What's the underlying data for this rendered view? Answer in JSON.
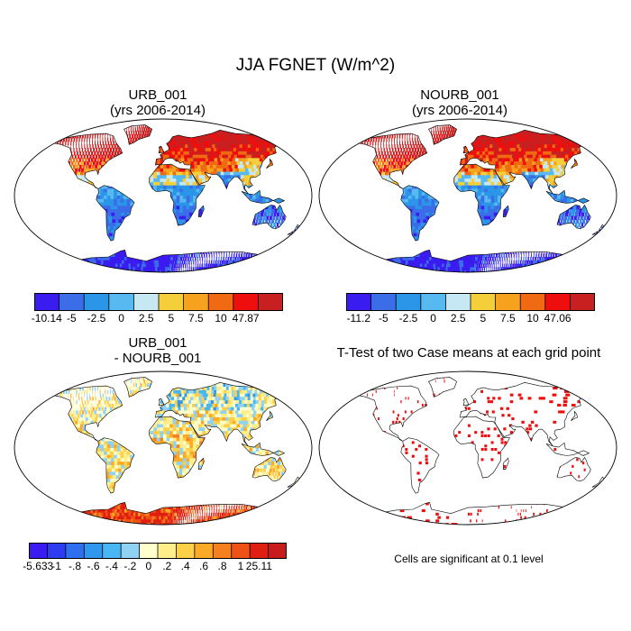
{
  "title": "JJA FGNET (W/m^2)",
  "panels": [
    {
      "id": "urb",
      "title_line1": "URB_001",
      "title_line2": "(yrs 2006-2014)",
      "colorbar": {
        "colors": [
          "#3a1bf0",
          "#3b6de8",
          "#2b95e8",
          "#58b8f0",
          "#c6e8f5",
          "#f4cf3a",
          "#f7a21f",
          "#ef6a12",
          "#ee0e0e",
          "#c82020"
        ],
        "labels": [
          "-10.14",
          "-5",
          "-2.5",
          "0",
          "2.5",
          "5",
          "7.5",
          "10",
          "47.87"
        ]
      }
    },
    {
      "id": "nourb",
      "title_line1": "NOURB_001",
      "title_line2": "(yrs 2006-2014)",
      "colorbar": {
        "colors": [
          "#3a1bf0",
          "#3b6de8",
          "#2b95e8",
          "#58b8f0",
          "#c6e8f5",
          "#f4cf3a",
          "#f7a21f",
          "#ef6a12",
          "#ee0e0e",
          "#c82020"
        ],
        "labels": [
          "-11.2",
          "-5",
          "-2.5",
          "0",
          "2.5",
          "5",
          "7.5",
          "10",
          "47.06"
        ]
      }
    },
    {
      "id": "diff",
      "title_line1": "URB_001",
      "title_line2": "- NOURB_001",
      "colorbar": {
        "colors": [
          "#3a1bf0",
          "#2d3cf0",
          "#2e6ef0",
          "#2f97ee",
          "#48b6f5",
          "#8fd2f4",
          "#ffffcc",
          "#ffee8a",
          "#fdd049",
          "#fbaa28",
          "#f7801e",
          "#ef5215",
          "#e01f12",
          "#c81c1c"
        ],
        "labels": [
          "-5.633",
          "-1",
          "-.8",
          "-.6",
          "-.4",
          "-.2",
          "0",
          ".2",
          ".4",
          ".6",
          ".8",
          "1",
          "25.11"
        ]
      }
    },
    {
      "id": "ttest",
      "title_line1": "T-Test of two Case means at each grid point",
      "title_line2": ""
    }
  ],
  "ttest_note": "Cells are significant at 0.1 level"
}
